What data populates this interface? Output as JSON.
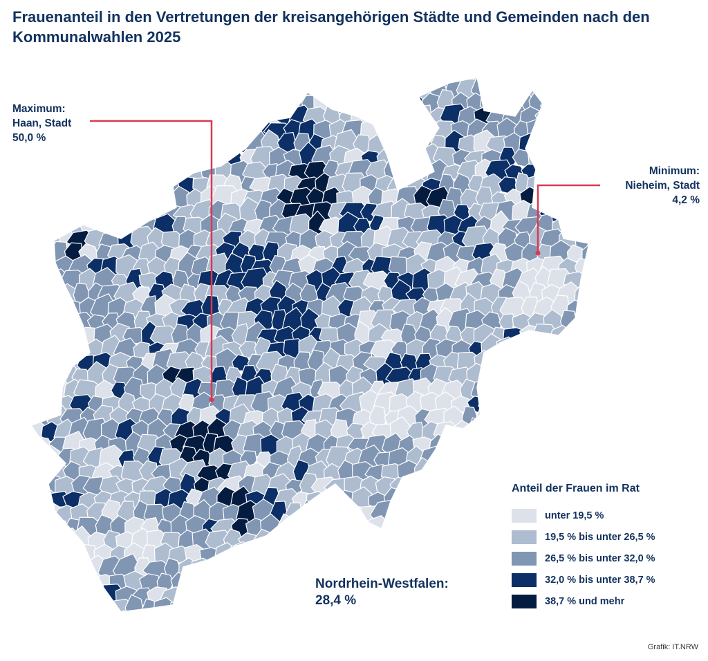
{
  "title": "Frauenanteil in den Vertretungen der kreisangehörigen Städte und Gemeinden nach den Kommunalwahlen 2025",
  "callout_max": {
    "line1": "Maximum:",
    "line2": "Haan, Stadt",
    "line3": "50,0 %"
  },
  "callout_min": {
    "line1": "Minimum:",
    "line2": "Nieheim, Stadt",
    "line3": "4,2 %"
  },
  "state_total": {
    "label": "Nordrhein-Westfalen:",
    "value": "28,4 %"
  },
  "legend": {
    "title": "Anteil der Frauen im Rat",
    "items": [
      {
        "label": "unter 19,5 %",
        "color": "#dde2ea"
      },
      {
        "label": "19,5 % bis unter 26,5 %",
        "color": "#aebcd0"
      },
      {
        "label": "26,5 % bis unter 32,0 %",
        "color": "#8096b3"
      },
      {
        "label": "32,0 % bis unter 38,7 %",
        "color": "#0b2f66"
      },
      {
        "label": "38,7 % und mehr",
        "color": "#051c41"
      }
    ]
  },
  "source": "Grafik: IT.NRW",
  "colors": {
    "text": "#12325f",
    "highlight": "#d93a52",
    "border": "#ffffff"
  }
}
